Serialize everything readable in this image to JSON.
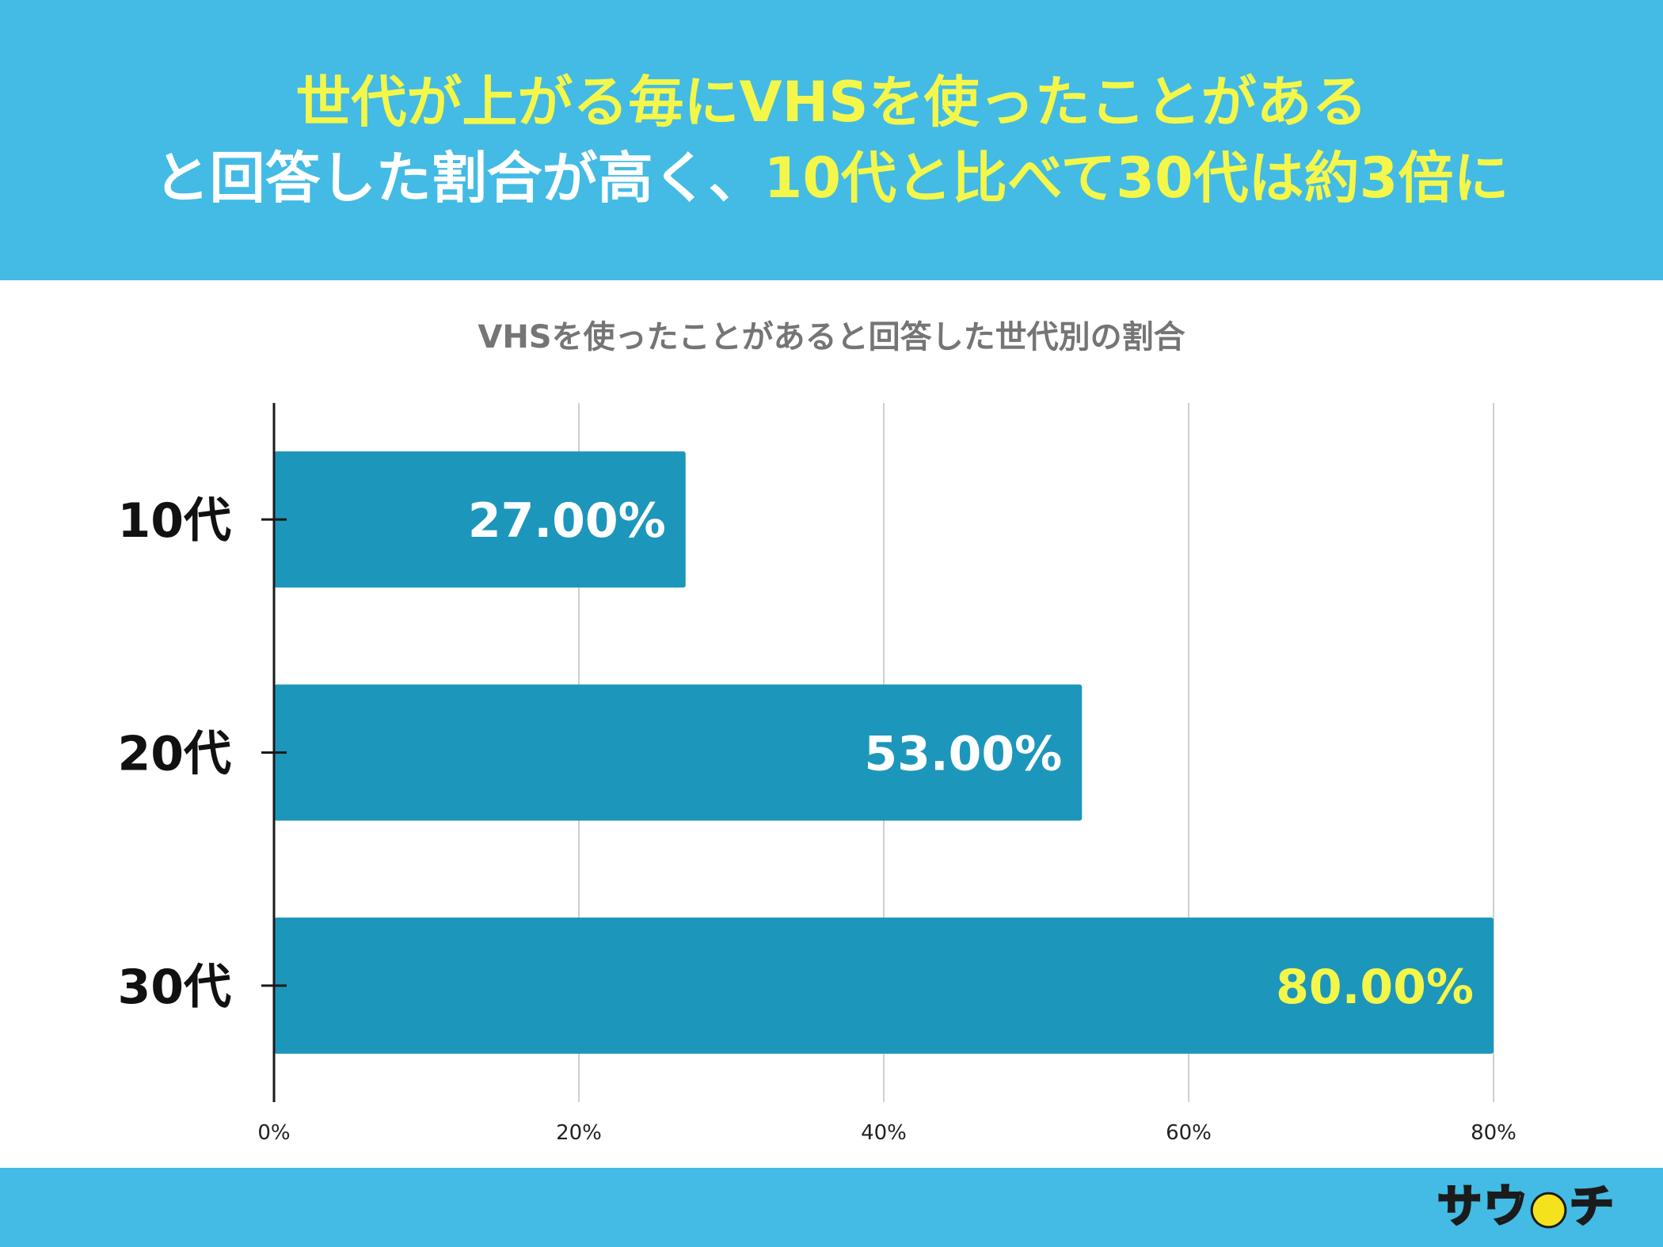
{
  "header": {
    "line1": "世代が上がる毎にVHSを使ったことがある",
    "line2_part1": "と回答した割合が高く、",
    "line2_part2": "10代と比べて30代は約3倍に"
  },
  "chart_data": {
    "type": "bar",
    "orientation": "horizontal",
    "title": "VHSを使ったことがあると回答した世代別の割合",
    "categories": [
      "10代",
      "20代",
      "30代"
    ],
    "values": [
      27.0,
      53.0,
      80.0
    ],
    "value_labels": [
      "27.00%",
      "53.00%",
      "80.00%"
    ],
    "xlim": [
      0,
      80
    ],
    "x_ticks": [
      "0%",
      "20%",
      "40%",
      "60%",
      "80%"
    ],
    "grid": true,
    "legend": "none",
    "bar_color": "#1d96bb",
    "label_colors": [
      "#ffffff",
      "#ffffff",
      "#f4f74a"
    ]
  },
  "footer": {
    "logo_text": "サウチ"
  },
  "colors": {
    "header_bg": "#43bbe4",
    "headline_yellow": "#f4f74a",
    "headline_white": "#ffffff"
  }
}
